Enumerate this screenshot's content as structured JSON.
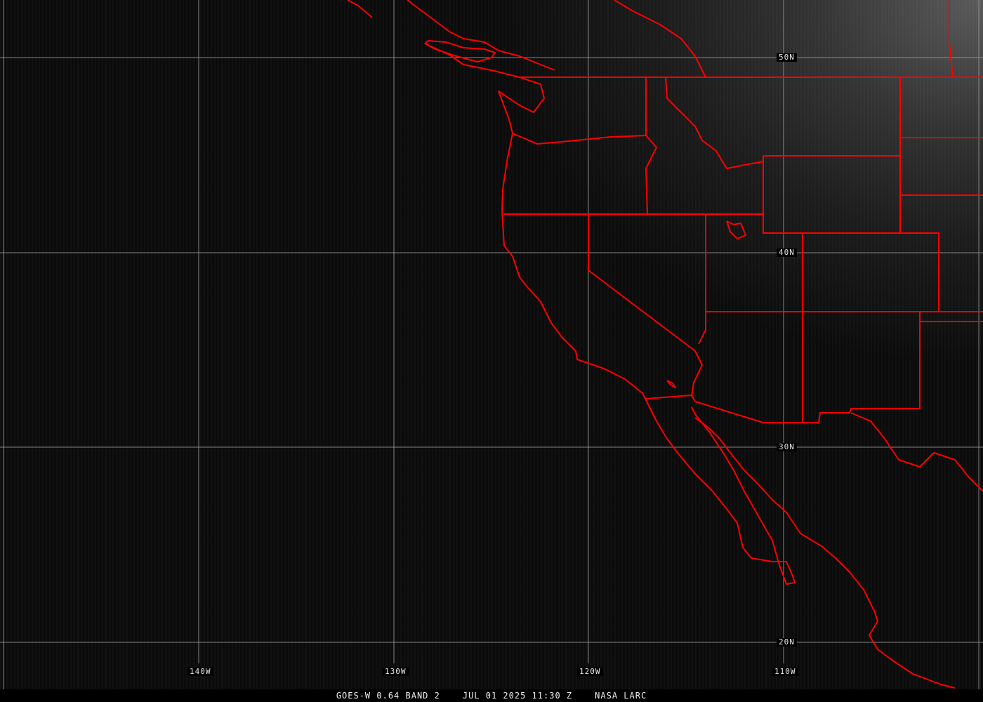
{
  "map": {
    "lat_labels": [
      "50N",
      "40N",
      "30N",
      "20N"
    ],
    "lon_labels": [
      "140W",
      "130W",
      "120W",
      "110W"
    ],
    "border_color": "#ff0000",
    "grid_color": "#9a9a9a"
  },
  "caption": {
    "satellite": "GOES-W 0.64 BAND 2",
    "datetime": "JUL 01 2025 11:30 Z",
    "source": "NASA LARC"
  }
}
